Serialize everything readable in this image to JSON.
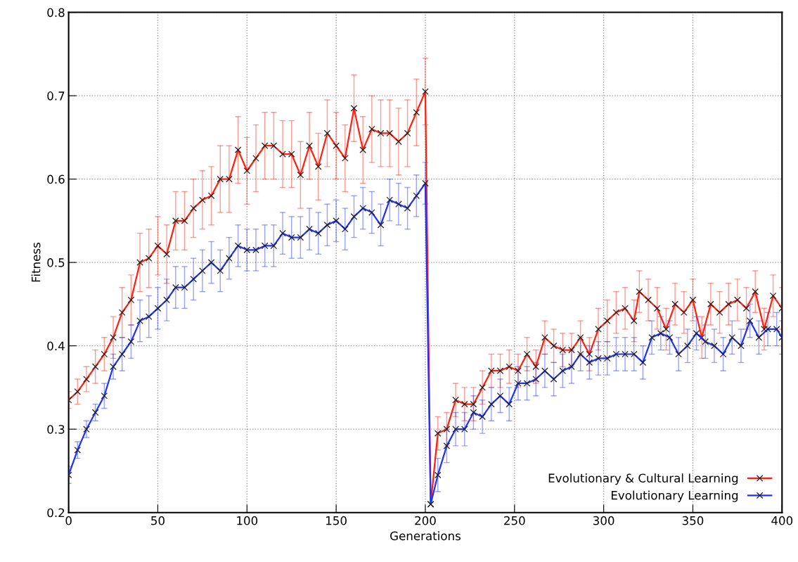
{
  "chart_data": {
    "type": "line",
    "xlabel": "Generations",
    "ylabel": "Fitness",
    "xlim": [
      0,
      400
    ],
    "ylim": [
      0.2,
      0.8
    ],
    "xticks": [
      0,
      50,
      100,
      150,
      200,
      250,
      300,
      350,
      400
    ],
    "yticks": [
      0.2,
      0.3,
      0.4,
      0.5,
      0.6,
      0.7,
      0.8
    ],
    "grid": true,
    "legend": "bottom right",
    "marker": "cross",
    "line_style": "solid",
    "series": [
      {
        "name": "Evolutionary & Cultural Learning",
        "color": "#ff2010",
        "x": [
          0,
          5,
          10,
          15,
          20,
          25,
          30,
          35,
          40,
          45,
          50,
          55,
          60,
          65,
          70,
          75,
          80,
          85,
          90,
          95,
          100,
          105,
          110,
          115,
          120,
          125,
          130,
          135,
          140,
          145,
          150,
          155,
          160,
          165,
          170,
          175,
          180,
          185,
          190,
          195,
          200,
          203,
          207,
          212,
          217,
          222,
          227,
          232,
          237,
          242,
          247,
          252,
          257,
          262,
          267,
          272,
          277,
          282,
          287,
          292,
          297,
          302,
          307,
          312,
          317,
          320,
          325,
          330,
          335,
          340,
          345,
          350,
          355,
          360,
          365,
          370,
          375,
          380,
          385,
          390,
          395,
          400
        ],
        "values": [
          0.335,
          0.345,
          0.36,
          0.375,
          0.39,
          0.41,
          0.44,
          0.455,
          0.5,
          0.505,
          0.52,
          0.51,
          0.55,
          0.55,
          0.565,
          0.575,
          0.58,
          0.6,
          0.6,
          0.635,
          0.61,
          0.625,
          0.64,
          0.64,
          0.63,
          0.63,
          0.605,
          0.64,
          0.615,
          0.655,
          0.64,
          0.625,
          0.685,
          0.635,
          0.66,
          0.655,
          0.655,
          0.645,
          0.655,
          0.68,
          0.705,
          0.21,
          0.295,
          0.3,
          0.335,
          0.33,
          0.33,
          0.35,
          0.37,
          0.37,
          0.375,
          0.37,
          0.39,
          0.375,
          0.41,
          0.4,
          0.395,
          0.395,
          0.41,
          0.39,
          0.42,
          0.43,
          0.44,
          0.445,
          0.43,
          0.465,
          0.455,
          0.445,
          0.42,
          0.45,
          0.44,
          0.455,
          0.41,
          0.45,
          0.44,
          0.45,
          0.455,
          0.445,
          0.465,
          0.42,
          0.46,
          0.445
        ],
        "errors": [
          0.01,
          0.015,
          0.015,
          0.02,
          0.02,
          0.025,
          0.03,
          0.03,
          0.035,
          0.035,
          0.035,
          0.035,
          0.035,
          0.035,
          0.035,
          0.035,
          0.035,
          0.04,
          0.04,
          0.04,
          0.04,
          0.04,
          0.04,
          0.04,
          0.04,
          0.04,
          0.04,
          0.04,
          0.04,
          0.04,
          0.04,
          0.04,
          0.04,
          0.04,
          0.04,
          0.04,
          0.04,
          0.04,
          0.04,
          0.04,
          0.04,
          null,
          0.02,
          0.02,
          0.02,
          0.02,
          0.02,
          0.02,
          0.02,
          0.02,
          0.02,
          0.02,
          0.02,
          0.02,
          0.02,
          0.02,
          0.02,
          0.02,
          0.02,
          0.02,
          0.025,
          0.025,
          0.025,
          0.025,
          0.025,
          0.025,
          0.025,
          0.025,
          0.025,
          0.025,
          0.025,
          0.025,
          0.025,
          0.025,
          0.025,
          0.025,
          0.025,
          0.025,
          0.025,
          0.025,
          0.025,
          0.025
        ]
      },
      {
        "name": "Evolutionary Learning",
        "color": "#2030ff",
        "x": [
          0,
          5,
          10,
          15,
          20,
          25,
          30,
          35,
          40,
          45,
          50,
          55,
          60,
          65,
          70,
          75,
          80,
          85,
          90,
          95,
          100,
          105,
          110,
          115,
          120,
          125,
          130,
          135,
          140,
          145,
          150,
          155,
          160,
          165,
          170,
          175,
          180,
          185,
          190,
          195,
          200,
          203,
          207,
          212,
          217,
          222,
          227,
          232,
          237,
          242,
          247,
          252,
          257,
          262,
          267,
          272,
          277,
          282,
          287,
          292,
          297,
          302,
          307,
          312,
          317,
          322,
          327,
          332,
          337,
          342,
          347,
          352,
          357,
          362,
          367,
          372,
          377,
          382,
          387,
          392,
          397,
          400
        ],
        "values": [
          0.245,
          0.275,
          0.3,
          0.32,
          0.34,
          0.375,
          0.39,
          0.405,
          0.43,
          0.435,
          0.445,
          0.455,
          0.47,
          0.47,
          0.48,
          0.49,
          0.5,
          0.49,
          0.505,
          0.52,
          0.515,
          0.515,
          0.52,
          0.52,
          0.535,
          0.53,
          0.53,
          0.54,
          0.535,
          0.545,
          0.55,
          0.54,
          0.555,
          0.565,
          0.56,
          0.545,
          0.575,
          0.57,
          0.565,
          0.58,
          0.595,
          0.21,
          0.245,
          0.28,
          0.3,
          0.3,
          0.32,
          0.315,
          0.33,
          0.34,
          0.33,
          0.355,
          0.355,
          0.36,
          0.37,
          0.36,
          0.37,
          0.375,
          0.39,
          0.38,
          0.385,
          0.385,
          0.39,
          0.39,
          0.39,
          0.38,
          0.41,
          0.415,
          0.41,
          0.39,
          0.4,
          0.415,
          0.405,
          0.4,
          0.39,
          0.41,
          0.4,
          0.43,
          0.41,
          0.42,
          0.42,
          0.41
        ],
        "errors": [
          0.01,
          0.01,
          0.01,
          0.01,
          0.015,
          0.015,
          0.02,
          0.02,
          0.025,
          0.025,
          0.025,
          0.025,
          0.025,
          0.025,
          0.025,
          0.025,
          0.025,
          0.025,
          0.025,
          0.025,
          0.025,
          0.025,
          0.025,
          0.025,
          0.025,
          0.025,
          0.025,
          0.025,
          0.025,
          0.025,
          0.025,
          0.025,
          0.025,
          0.025,
          0.025,
          0.025,
          0.025,
          0.025,
          0.025,
          0.025,
          0.025,
          null,
          0.02,
          0.02,
          0.02,
          0.02,
          0.02,
          0.02,
          0.02,
          0.02,
          0.02,
          0.02,
          0.02,
          0.02,
          0.02,
          0.02,
          0.02,
          0.02,
          0.02,
          0.02,
          0.02,
          0.02,
          0.02,
          0.02,
          0.02,
          0.02,
          0.02,
          0.02,
          0.02,
          0.02,
          0.02,
          0.02,
          0.02,
          0.02,
          0.02,
          0.02,
          0.02,
          0.02,
          0.02,
          0.02,
          0.02,
          0.02
        ]
      }
    ]
  }
}
